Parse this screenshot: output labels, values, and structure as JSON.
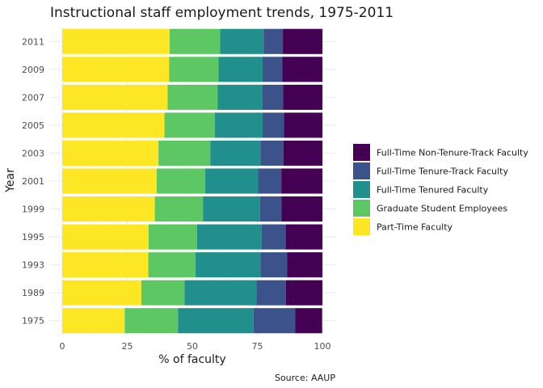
{
  "chart_data": {
    "type": "bar",
    "orientation": "horizontal",
    "stacked": true,
    "title": "Instructional staff employment trends, 1975-2011",
    "xlabel": "% of faculty",
    "ylabel": "Year",
    "caption": "Source: AAUP",
    "xlim": [
      0,
      100
    ],
    "xticks": [
      0,
      25,
      50,
      75,
      100
    ],
    "categories": [
      "1975",
      "1989",
      "1993",
      "1995",
      "1999",
      "2001",
      "2003",
      "2005",
      "2007",
      "2009",
      "2011"
    ],
    "series": [
      {
        "name": "Part-Time Faculty",
        "color": "#FDE725",
        "values": [
          24.0,
          30.4,
          33.1,
          33.2,
          35.6,
          36.3,
          37.0,
          39.3,
          40.5,
          41.1,
          41.3
        ]
      },
      {
        "name": "Graduate Student Employees",
        "color": "#5DC863",
        "values": [
          20.5,
          16.6,
          18.1,
          18.6,
          18.5,
          18.6,
          19.9,
          19.4,
          19.2,
          19.0,
          19.4
        ]
      },
      {
        "name": "Full-Time Tenured Faculty",
        "color": "#21908C",
        "values": [
          29.0,
          27.6,
          25.0,
          24.8,
          21.9,
          20.4,
          19.3,
          18.3,
          17.2,
          16.9,
          16.7
        ]
      },
      {
        "name": "Full-Time Tenure-Track Faculty",
        "color": "#3B528B",
        "values": [
          16.1,
          11.4,
          10.2,
          9.3,
          8.3,
          8.9,
          8.8,
          8.2,
          8.0,
          7.6,
          7.4
        ]
      },
      {
        "name": "Full-Time Non-Tenure-Track Faculty",
        "color": "#440154",
        "values": [
          10.3,
          14.0,
          13.6,
          14.1,
          15.7,
          15.8,
          15.0,
          14.8,
          15.1,
          15.4,
          15.2
        ]
      }
    ],
    "legend": {
      "position": "right",
      "order": [
        "Full-Time Non-Tenure-Track Faculty",
        "Full-Time Tenure-Track Faculty",
        "Full-Time Tenured Faculty",
        "Graduate Student Employees",
        "Part-Time Faculty"
      ]
    },
    "grid": true
  }
}
